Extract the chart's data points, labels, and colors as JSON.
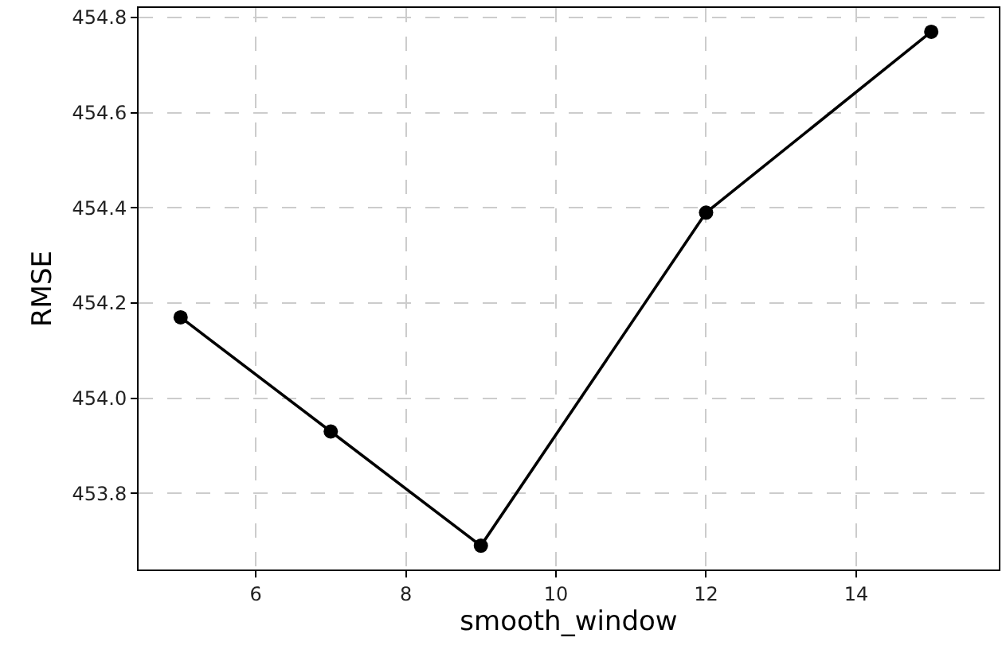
{
  "chart_data": {
    "type": "line",
    "xlabel": "smooth_window",
    "ylabel": "RMSE",
    "x": [
      5,
      7,
      9,
      12,
      15
    ],
    "series": [
      {
        "color": "#000000",
        "values": [
          454.17,
          453.93,
          453.69,
          454.39,
          454.77
        ]
      }
    ],
    "xlim": [
      4.44,
      15.9
    ],
    "xticks": [
      6,
      8,
      10,
      12,
      14
    ],
    "ylim": [
      453.64,
      454.82
    ],
    "yticks": [
      453.8,
      {
        "value": 454,
        "label": "454.0"
      },
      454.2,
      454.4,
      454.6,
      454.8
    ],
    "grid": true,
    "marker": "circle",
    "line_style": "solid",
    "legend": false
  }
}
